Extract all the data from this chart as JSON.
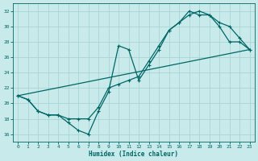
{
  "xlabel": "Humidex (Indice chaleur)",
  "bg_color": "#c8eaea",
  "grid_color": "#aad4d4",
  "line_color": "#006666",
  "xlim": [
    -0.5,
    23.5
  ],
  "ylim": [
    15.0,
    33.0
  ],
  "yticks": [
    16,
    18,
    20,
    22,
    24,
    26,
    28,
    30,
    32
  ],
  "xticks": [
    0,
    1,
    2,
    3,
    4,
    5,
    6,
    7,
    8,
    9,
    10,
    11,
    12,
    13,
    14,
    15,
    16,
    17,
    18,
    19,
    20,
    21,
    22,
    23
  ],
  "line1_x": [
    0,
    1,
    2,
    3,
    4,
    5,
    6,
    7,
    8,
    9,
    10,
    11,
    12,
    13,
    14,
    15,
    16,
    17,
    18,
    19,
    20,
    21,
    22,
    23
  ],
  "line1_y": [
    21.0,
    20.5,
    19.0,
    18.5,
    18.5,
    17.5,
    16.5,
    16.0,
    19.0,
    21.5,
    27.5,
    27.0,
    23.0,
    25.0,
    27.0,
    29.5,
    30.5,
    32.0,
    31.5,
    31.5,
    30.0,
    28.0,
    28.0,
    27.0
  ],
  "line2_x": [
    0,
    1,
    2,
    3,
    4,
    5,
    6,
    7,
    8,
    9,
    10,
    11,
    12,
    13,
    14,
    15,
    16,
    17,
    18,
    19,
    20,
    21,
    22,
    23
  ],
  "line2_y": [
    21.0,
    20.5,
    19.0,
    18.5,
    18.5,
    18.0,
    18.0,
    18.0,
    19.5,
    22.0,
    22.5,
    23.0,
    23.5,
    25.5,
    27.5,
    29.5,
    30.5,
    31.5,
    32.0,
    31.5,
    30.5,
    30.0,
    28.5,
    27.0
  ],
  "line3_x": [
    0,
    23
  ],
  "line3_y": [
    21.0,
    27.0
  ],
  "marker_size": 2.5,
  "linewidth": 0.9
}
